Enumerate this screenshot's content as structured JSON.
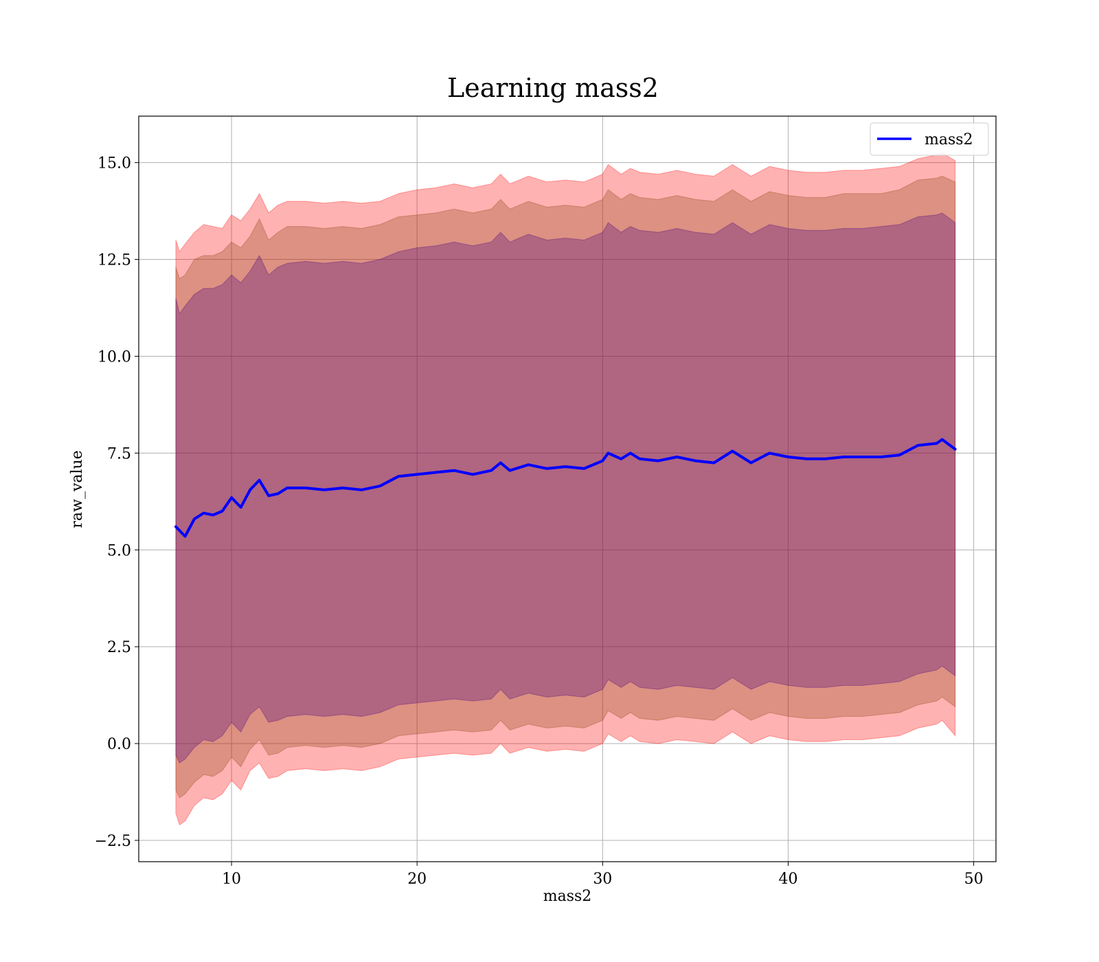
{
  "chart_data": {
    "type": "line",
    "title": "Learning mass2",
    "xlabel": "mass2",
    "ylabel": "raw_value",
    "xlim": [
      5,
      51.2
    ],
    "ylim": [
      -3.05,
      16.2
    ],
    "xticks": [
      10,
      20,
      30,
      40,
      50
    ],
    "xtick_labels": [
      "10",
      "20",
      "30",
      "40",
      "50"
    ],
    "yticks": [
      -2.5,
      0.0,
      2.5,
      5.0,
      7.5,
      10.0,
      12.5,
      15.0
    ],
    "ytick_labels": [
      "−2.5",
      "0.0",
      "2.5",
      "5.0",
      "7.5",
      "10.0",
      "12.5",
      "15.0"
    ],
    "grid": true,
    "legend": {
      "placement": "top-right",
      "entries": [
        "mass2"
      ]
    },
    "colors": {
      "line": "#0000ff",
      "band_outer": "#ff0000",
      "band_middle": "#8b4513",
      "band_inner": "#4b0082",
      "grid": "#b0b0b0"
    },
    "series": [
      {
        "name": "mass2",
        "x": [
          7.0,
          7.2,
          7.5,
          8.0,
          8.5,
          9.0,
          9.5,
          10.0,
          10.5,
          11.0,
          11.5,
          12.0,
          12.5,
          13.0,
          14.0,
          15.0,
          16.0,
          17.0,
          18.0,
          19.0,
          20.0,
          21.0,
          22.0,
          23.0,
          24.0,
          24.5,
          25.0,
          26.0,
          27.0,
          28.0,
          29.0,
          30.0,
          30.3,
          31.0,
          31.5,
          32.0,
          33.0,
          34.0,
          35.0,
          36.0,
          37.0,
          38.0,
          39.0,
          40.0,
          41.0,
          42.0,
          43.0,
          44.0,
          45.0,
          46.0,
          47.0,
          48.0,
          48.3,
          49.0
        ],
        "y": [
          5.6,
          5.5,
          5.35,
          5.8,
          5.95,
          5.9,
          6.0,
          6.35,
          6.1,
          6.55,
          6.8,
          6.4,
          6.45,
          6.6,
          6.6,
          6.55,
          6.6,
          6.55,
          6.65,
          6.9,
          6.95,
          7.0,
          7.05,
          6.95,
          7.05,
          7.25,
          7.05,
          7.2,
          7.1,
          7.15,
          7.1,
          7.3,
          7.5,
          7.35,
          7.5,
          7.35,
          7.3,
          7.4,
          7.3,
          7.25,
          7.55,
          7.25,
          7.5,
          7.4,
          7.35,
          7.35,
          7.4,
          7.4,
          7.4,
          7.45,
          7.7,
          7.75,
          7.85,
          7.6
        ],
        "band_outer_upper": [
          13.0,
          12.7,
          12.9,
          13.2,
          13.4,
          13.35,
          13.3,
          13.65,
          13.5,
          13.8,
          14.2,
          13.7,
          13.9,
          14.0,
          14.0,
          13.95,
          14.0,
          13.95,
          14.0,
          14.2,
          14.3,
          14.35,
          14.45,
          14.35,
          14.45,
          14.7,
          14.45,
          14.65,
          14.5,
          14.55,
          14.5,
          14.7,
          14.95,
          14.7,
          14.85,
          14.75,
          14.7,
          14.8,
          14.7,
          14.65,
          14.95,
          14.65,
          14.9,
          14.8,
          14.75,
          14.75,
          14.8,
          14.8,
          14.85,
          14.9,
          15.1,
          15.2,
          15.25,
          15.05
        ],
        "band_middle_upper": [
          12.3,
          12.0,
          12.1,
          12.5,
          12.6,
          12.6,
          12.7,
          12.95,
          12.8,
          13.1,
          13.55,
          13.0,
          13.2,
          13.35,
          13.35,
          13.3,
          13.35,
          13.3,
          13.4,
          13.6,
          13.65,
          13.7,
          13.8,
          13.7,
          13.8,
          14.05,
          13.8,
          14.0,
          13.85,
          13.9,
          13.85,
          14.05,
          14.3,
          14.05,
          14.2,
          14.1,
          14.05,
          14.15,
          14.05,
          14.0,
          14.3,
          14.0,
          14.25,
          14.15,
          14.1,
          14.1,
          14.2,
          14.2,
          14.2,
          14.3,
          14.55,
          14.6,
          14.65,
          14.5
        ],
        "band_inner_upper": [
          11.5,
          11.1,
          11.3,
          11.6,
          11.75,
          11.75,
          11.85,
          12.1,
          11.9,
          12.2,
          12.6,
          12.1,
          12.3,
          12.4,
          12.45,
          12.4,
          12.45,
          12.4,
          12.5,
          12.7,
          12.8,
          12.85,
          12.95,
          12.85,
          12.95,
          13.2,
          12.95,
          13.15,
          13.0,
          13.05,
          13.0,
          13.2,
          13.45,
          13.2,
          13.35,
          13.25,
          13.2,
          13.3,
          13.2,
          13.15,
          13.45,
          13.15,
          13.4,
          13.3,
          13.25,
          13.25,
          13.3,
          13.3,
          13.35,
          13.4,
          13.6,
          13.65,
          13.7,
          13.45
        ],
        "band_inner_lower": [
          -0.3,
          -0.5,
          -0.4,
          -0.1,
          0.1,
          0.05,
          0.2,
          0.55,
          0.3,
          0.75,
          0.95,
          0.55,
          0.6,
          0.7,
          0.75,
          0.7,
          0.75,
          0.7,
          0.8,
          1.0,
          1.05,
          1.1,
          1.15,
          1.1,
          1.15,
          1.4,
          1.15,
          1.3,
          1.2,
          1.25,
          1.2,
          1.4,
          1.65,
          1.45,
          1.6,
          1.45,
          1.4,
          1.5,
          1.45,
          1.4,
          1.7,
          1.4,
          1.6,
          1.5,
          1.45,
          1.45,
          1.5,
          1.5,
          1.55,
          1.6,
          1.8,
          1.9,
          2.0,
          1.75
        ],
        "band_middle_lower": [
          -1.2,
          -1.4,
          -1.3,
          -1.0,
          -0.8,
          -0.85,
          -0.7,
          -0.35,
          -0.6,
          -0.15,
          0.1,
          -0.3,
          -0.25,
          -0.1,
          -0.05,
          -0.1,
          -0.05,
          -0.1,
          0.0,
          0.2,
          0.25,
          0.3,
          0.35,
          0.3,
          0.35,
          0.6,
          0.35,
          0.5,
          0.4,
          0.45,
          0.4,
          0.6,
          0.85,
          0.65,
          0.8,
          0.65,
          0.6,
          0.7,
          0.65,
          0.6,
          0.9,
          0.6,
          0.8,
          0.7,
          0.65,
          0.65,
          0.7,
          0.7,
          0.75,
          0.8,
          1.0,
          1.1,
          1.2,
          0.95
        ],
        "band_outer_lower": [
          -1.8,
          -2.1,
          -2.0,
          -1.6,
          -1.4,
          -1.45,
          -1.3,
          -0.95,
          -1.2,
          -0.7,
          -0.5,
          -0.9,
          -0.85,
          -0.7,
          -0.65,
          -0.7,
          -0.65,
          -0.7,
          -0.6,
          -0.4,
          -0.35,
          -0.3,
          -0.25,
          -0.3,
          -0.25,
          0.0,
          -0.25,
          -0.1,
          -0.2,
          -0.15,
          -0.2,
          0.0,
          0.25,
          0.05,
          0.2,
          0.05,
          0.0,
          0.1,
          0.05,
          0.0,
          0.3,
          0.0,
          0.2,
          0.1,
          0.05,
          0.05,
          0.1,
          0.1,
          0.15,
          0.2,
          0.4,
          0.5,
          0.6,
          0.2
        ]
      }
    ]
  }
}
